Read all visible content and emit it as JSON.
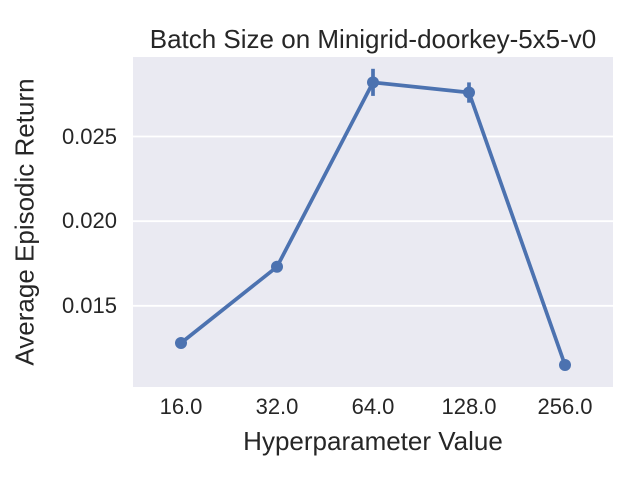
{
  "chart_data": {
    "type": "line",
    "title": "Batch Size on Minigrid-doorkey-5x5-v0",
    "xlabel": "Hyperparameter Value",
    "ylabel": "Average Episodic Return",
    "categories": [
      "16.0",
      "32.0",
      "64.0",
      "128.0",
      "256.0"
    ],
    "series": [
      {
        "name": "Batch Size",
        "values": [
          0.0128,
          0.0173,
          0.0282,
          0.0276,
          0.0115
        ],
        "errors": [
          0.0002,
          0.0002,
          0.0008,
          0.0006,
          0.0002
        ]
      }
    ],
    "y_ticks": [
      0.015,
      0.02,
      0.025
    ],
    "y_tick_labels": [
      "0.015",
      "0.020",
      "0.025"
    ],
    "ylim": [
      0.0102,
      0.0297
    ],
    "grid": "horizontal-only",
    "legend": "none",
    "marker": "circle",
    "colors": {
      "line": "#4C72B0",
      "plot_background": "#EAEAF2",
      "grid": "#FFFFFF",
      "text": "#262626",
      "figure_background": "#FFFFFF"
    }
  }
}
